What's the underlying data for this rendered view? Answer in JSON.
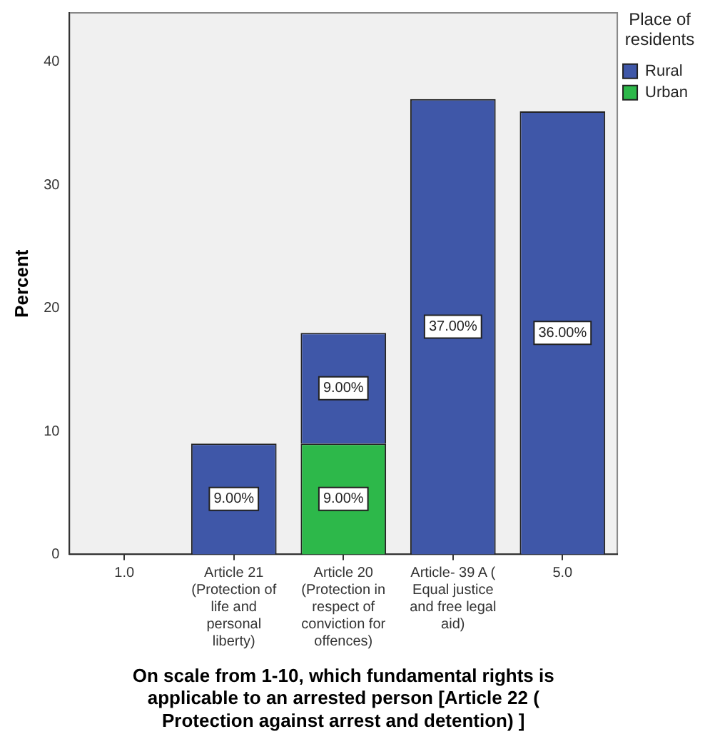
{
  "chart_data": {
    "type": "bar",
    "stacked": true,
    "xlabel": "On scale from 1-10, which fundamental rights is applicable to an arrested person [Article 22 ( Protection against arrest and detention) ]",
    "ylabel": "Percent",
    "legend_title": "Place of residents",
    "categories": [
      "1.0",
      "Article 21 (Protection of life and personal liberty)",
      "Article 20 (Protection in respect of conviction for offences)",
      "Article- 39 A ( Equal justice and free legal aid)",
      "5.0"
    ],
    "series": [
      {
        "name": "Urban",
        "color": "#2db84a",
        "values": [
          null,
          null,
          9,
          null,
          null
        ],
        "value_labels": [
          null,
          null,
          "9.00%",
          null,
          null
        ]
      },
      {
        "name": "Rural",
        "color": "#3f57a8",
        "values": [
          null,
          9,
          9,
          37,
          36
        ],
        "value_labels": [
          null,
          "9.00%",
          "9.00%",
          "37.00%",
          "36.00%"
        ]
      }
    ],
    "ylim": [
      0,
      44
    ],
    "yticks": [
      0,
      10,
      20,
      30,
      40
    ],
    "grid": false,
    "legend": "top right"
  }
}
